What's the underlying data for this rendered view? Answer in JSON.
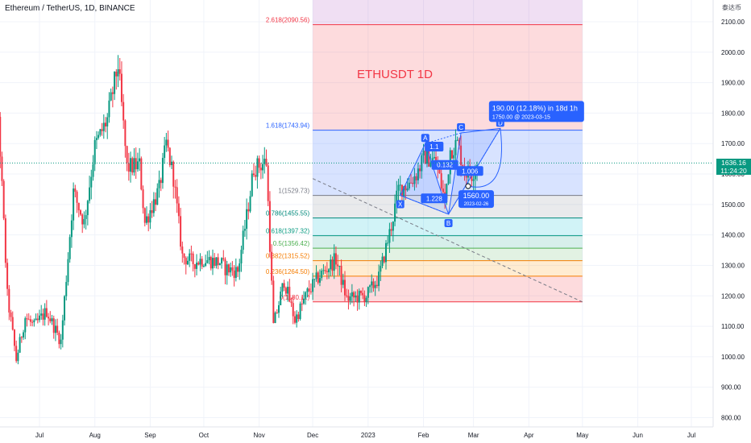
{
  "header": {
    "symbol": "Ethereum / TetherUS, 1D, BINANCE",
    "currency": "泰达币"
  },
  "last_price": {
    "value": "1636.16",
    "countdown": "11:24:20",
    "color": "#089981"
  },
  "colors": {
    "up": "#089981",
    "down": "#f23645",
    "pattern": "#2962ff"
  },
  "chart_data": {
    "type": "candlestick",
    "title": "ETHUSDT 1D",
    "y_ticks": [
      800,
      900,
      1000,
      1100,
      1200,
      1300,
      1400,
      1500,
      1600,
      1700,
      1800,
      1900,
      2000,
      2100
    ],
    "y_tick_labels": [
      "800.00",
      "900.00",
      "1000.00",
      "1100.00",
      "1200.00",
      "1300.00",
      "1400.00",
      "1500.00",
      "1600.00",
      "1700.00",
      "1800.00",
      "1900.00",
      "2000.00",
      "2100.00"
    ],
    "ylim": [
      770,
      2215
    ],
    "x_ticks": [
      {
        "label": "Jul",
        "date": "2022-07-01"
      },
      {
        "label": "Aug",
        "date": "2022-08-01"
      },
      {
        "label": "Sep",
        "date": "2022-09-01"
      },
      {
        "label": "Oct",
        "date": "2022-10-01"
      },
      {
        "label": "Nov",
        "date": "2022-11-01"
      },
      {
        "label": "Dec",
        "date": "2022-12-01"
      },
      {
        "label": "2023",
        "date": "2023-01-01"
      },
      {
        "label": "Feb",
        "date": "2023-02-01"
      },
      {
        "label": "Mar",
        "date": "2023-03-01"
      },
      {
        "label": "Apr",
        "date": "2023-04-01"
      },
      {
        "label": "May",
        "date": "2023-05-01"
      },
      {
        "label": "Jun",
        "date": "2023-06-01"
      },
      {
        "label": "Jul",
        "date": "2023-07-01"
      }
    ],
    "price_path": [
      [
        "2022-06-01",
        1820
      ],
      [
        "2022-06-08",
        1790
      ],
      [
        "2022-06-13",
        1200
      ],
      [
        "2022-06-18",
        990
      ],
      [
        "2022-06-23",
        1130
      ],
      [
        "2022-06-28",
        1100
      ],
      [
        "2022-07-05",
        1150
      ],
      [
        "2022-07-13",
        1050
      ],
      [
        "2022-07-20",
        1540
      ],
      [
        "2022-07-26",
        1440
      ],
      [
        "2022-08-01",
        1690
      ],
      [
        "2022-08-08",
        1780
      ],
      [
        "2022-08-14",
        1960
      ],
      [
        "2022-08-19",
        1620
      ],
      [
        "2022-08-26",
        1630
      ],
      [
        "2022-08-29",
        1440
      ],
      [
        "2022-09-06",
        1550
      ],
      [
        "2022-09-10",
        1700
      ],
      [
        "2022-09-14",
        1590
      ],
      [
        "2022-09-19",
        1330
      ],
      [
        "2022-09-25",
        1310
      ],
      [
        "2022-10-01",
        1320
      ],
      [
        "2022-10-10",
        1310
      ],
      [
        "2022-10-13",
        1290
      ],
      [
        "2022-10-20",
        1280
      ],
      [
        "2022-10-25",
        1460
      ],
      [
        "2022-10-29",
        1620
      ],
      [
        "2022-11-05",
        1640
      ],
      [
        "2022-11-09",
        1100
      ],
      [
        "2022-11-15",
        1250
      ],
      [
        "2022-11-21",
        1120
      ],
      [
        "2022-11-28",
        1210
      ],
      [
        "2022-12-04",
        1260
      ],
      [
        "2022-12-14",
        1320
      ],
      [
        "2022-12-20",
        1190
      ],
      [
        "2022-12-31",
        1200
      ],
      [
        "2023-01-07",
        1260
      ],
      [
        "2023-01-14",
        1430
      ],
      [
        "2023-01-18",
        1550
      ],
      [
        "2023-01-24",
        1570
      ],
      [
        "2023-01-28",
        1600
      ],
      [
        "2023-02-02",
        1660
      ],
      [
        "2023-02-08",
        1640
      ],
      [
        "2023-02-13",
        1510
      ],
      [
        "2023-02-16",
        1680
      ],
      [
        "2023-02-20",
        1700
      ],
      [
        "2023-02-24",
        1610
      ],
      [
        "2023-02-28",
        1600
      ],
      [
        "2023-03-03",
        1636
      ]
    ],
    "fibonacci": {
      "label_format": "ratio(price)",
      "levels": [
        {
          "ratio": "0",
          "price": 1180.11,
          "label": "0(1180.11)",
          "color": "#f23645"
        },
        {
          "ratio": "0.236",
          "price": 1264.5,
          "label": "0.236(1264.50)",
          "color": "#f57c00"
        },
        {
          "ratio": "0.382",
          "price": 1315.52,
          "label": "0.382(1315.52)",
          "color": "#f57c00"
        },
        {
          "ratio": "0.5",
          "price": 1356.42,
          "label": "0.5(1356.42)",
          "color": "#4caf50"
        },
        {
          "ratio": "0.618",
          "price": 1397.32,
          "label": "0.618(1397.32)",
          "color": "#089981"
        },
        {
          "ratio": "0.786",
          "price": 1455.55,
          "label": "0.786(1455.55)",
          "color": "#00897b"
        },
        {
          "ratio": "1",
          "price": 1529.73,
          "label": "1(1529.73)",
          "color": "#787b86"
        },
        {
          "ratio": "1.618",
          "price": 1743.94,
          "label": "1.618(1743.94)",
          "color": "#2962ff"
        },
        {
          "ratio": "2.618",
          "price": 2090.56,
          "label": "2.618(2090.56)",
          "color": "#f23645"
        }
      ],
      "start_date": "2022-12-01",
      "end_date": "2023-05-01"
    },
    "pattern": {
      "points": [
        {
          "label": "X",
          "date": "2023-01-19",
          "price": 1530
        },
        {
          "label": "A",
          "date": "2023-02-02",
          "price": 1700
        },
        {
          "label": "B",
          "date": "2023-02-15",
          "price": 1468
        },
        {
          "label": "C",
          "date": "2023-02-22",
          "price": 1735
        },
        {
          "label": "D",
          "date": "2023-03-16",
          "price": 1750
        }
      ],
      "ratio_labels": [
        {
          "text": "1.1",
          "date": "2023-02-07",
          "price": 1690
        },
        {
          "text": "0.132",
          "date": "2023-02-13",
          "price": 1630
        },
        {
          "text": "1.228",
          "date": "2023-02-07",
          "price": 1520
        },
        {
          "text": "1.006",
          "date": "2023-02-27",
          "price": 1610
        }
      ]
    },
    "projection": {
      "headline": "190.00 (12.18%) in 18d 1h",
      "subline": "1750.00 @ 2023-03-15",
      "low_price": "1560.00",
      "low_date": "2023-02-26",
      "low_point_date": "2023-02-26",
      "low_point_price": 1560
    },
    "trendline": [
      [
        "2022-12-01",
        1585
      ],
      [
        "2023-05-01",
        1180
      ]
    ]
  }
}
